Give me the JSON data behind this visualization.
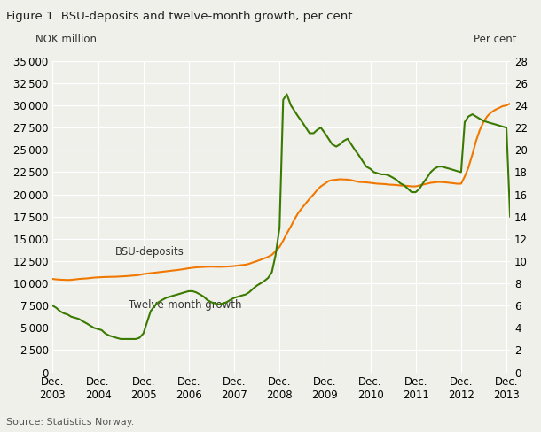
{
  "title": "Figure 1. BSU-deposits and twelve-month growth, per cent",
  "ylabel_left": "NOK million",
  "ylabel_right": "Per cent",
  "source": "Source: Statistics Norway.",
  "background_color": "#f0f0eb",
  "plot_bg_color": "#f0f0eb",
  "orange_color": "#f07800",
  "green_color": "#3a7a00",
  "ylim_left": [
    0,
    35000
  ],
  "ylim_right": [
    0,
    28
  ],
  "yticks_left": [
    0,
    2500,
    5000,
    7500,
    10000,
    12500,
    15000,
    17500,
    20000,
    22500,
    25000,
    27500,
    30000,
    32500,
    35000
  ],
  "yticks_right": [
    0,
    2,
    4,
    6,
    8,
    10,
    12,
    14,
    16,
    18,
    20,
    22,
    24,
    26,
    28
  ],
  "xtick_labels": [
    "Dec.\n2003",
    "Dec.\n2004",
    "Dec.\n2005",
    "Dec.\n2006",
    "Dec.\n2007",
    "Dec.\n2008",
    "Dec.\n2009",
    "Dec.\n2010",
    "Dec.\n2011",
    "Dec.\n2012",
    "Dec.\n2013"
  ],
  "label_bsu": "BSU-deposits",
  "label_growth": "Twelve-month growth",
  "n_months": 121,
  "bsu_x_years": [
    2003.92,
    2004.0,
    2004.08,
    2004.17,
    2004.25,
    2004.33,
    2004.42,
    2004.5,
    2004.58,
    2004.67,
    2004.75,
    2004.83,
    2005.0,
    2005.08,
    2005.17,
    2005.25,
    2005.33,
    2005.42,
    2005.5,
    2005.58,
    2005.67,
    2005.75,
    2005.83,
    2005.92,
    2006.0,
    2006.08,
    2006.17,
    2006.25,
    2006.33,
    2006.42,
    2006.5,
    2006.58,
    2006.67,
    2006.75,
    2006.83,
    2006.92,
    2007.0,
    2007.08,
    2007.17,
    2007.25,
    2007.33,
    2007.42,
    2007.5,
    2007.58,
    2007.67,
    2007.75,
    2007.83,
    2007.92,
    2008.0,
    2008.08,
    2008.17,
    2008.25,
    2008.33,
    2008.42,
    2008.5,
    2008.58,
    2008.67,
    2008.75,
    2008.83,
    2008.92,
    2009.0,
    2009.08,
    2009.17,
    2009.25,
    2009.33,
    2009.42,
    2009.5,
    2009.58,
    2009.67,
    2009.75,
    2009.83,
    2009.92,
    2010.0,
    2010.08,
    2010.17,
    2010.25,
    2010.33,
    2010.42,
    2010.5,
    2010.58,
    2010.67,
    2010.75,
    2010.83,
    2010.92,
    2011.0,
    2011.08,
    2011.17,
    2011.25,
    2011.33,
    2011.42,
    2011.5,
    2011.58,
    2011.67,
    2011.75,
    2011.83,
    2011.92,
    2012.0,
    2012.08,
    2012.17,
    2012.25,
    2012.33,
    2012.42,
    2012.5,
    2012.58,
    2012.67,
    2012.75,
    2012.83,
    2012.92,
    2013.0,
    2013.08,
    2013.17,
    2013.25,
    2013.33,
    2013.42,
    2013.5,
    2013.58,
    2013.67,
    2013.75,
    2013.83,
    2013.92,
    2014.0
  ],
  "bsu_deposits": [
    10500,
    10450,
    10420,
    10400,
    10380,
    10400,
    10450,
    10500,
    10530,
    10560,
    10600,
    10650,
    10700,
    10720,
    10730,
    10740,
    10750,
    10780,
    10800,
    10830,
    10870,
    10900,
    10950,
    11050,
    11100,
    11150,
    11200,
    11250,
    11300,
    11350,
    11400,
    11450,
    11500,
    11560,
    11620,
    11700,
    11750,
    11800,
    11830,
    11850,
    11870,
    11880,
    11870,
    11860,
    11870,
    11890,
    11910,
    11950,
    12000,
    12050,
    12100,
    12200,
    12350,
    12500,
    12650,
    12800,
    12980,
    13200,
    13600,
    14100,
    14800,
    15600,
    16400,
    17200,
    17900,
    18500,
    19000,
    19500,
    20000,
    20500,
    20900,
    21200,
    21500,
    21600,
    21650,
    21700,
    21680,
    21660,
    21600,
    21500,
    21400,
    21380,
    21350,
    21300,
    21250,
    21200,
    21180,
    21150,
    21100,
    21080,
    21050,
    21000,
    20980,
    20950,
    20900,
    20900,
    21000,
    21100,
    21200,
    21300,
    21350,
    21400,
    21380,
    21350,
    21300,
    21250,
    21200,
    21200,
    22000,
    23000,
    24500,
    26000,
    27200,
    28200,
    28800,
    29200,
    29500,
    29700,
    29900,
    30000,
    30200
  ],
  "growth_x_years": [
    2003.92,
    2004.0,
    2004.08,
    2004.17,
    2004.25,
    2004.33,
    2004.42,
    2004.5,
    2004.58,
    2004.67,
    2004.75,
    2004.83,
    2005.0,
    2005.08,
    2005.17,
    2005.25,
    2005.33,
    2005.42,
    2005.5,
    2005.58,
    2005.67,
    2005.75,
    2005.83,
    2005.92,
    2006.0,
    2006.08,
    2006.17,
    2006.25,
    2006.33,
    2006.42,
    2006.5,
    2006.58,
    2006.67,
    2006.75,
    2006.83,
    2006.92,
    2007.0,
    2007.08,
    2007.17,
    2007.25,
    2007.33,
    2007.42,
    2007.5,
    2007.58,
    2007.67,
    2007.75,
    2007.83,
    2007.92,
    2008.0,
    2008.08,
    2008.17,
    2008.25,
    2008.33,
    2008.42,
    2008.5,
    2008.58,
    2008.67,
    2008.75,
    2008.83,
    2008.92,
    2009.0,
    2009.08,
    2009.17,
    2009.25,
    2009.33,
    2009.42,
    2009.5,
    2009.58,
    2009.67,
    2009.75,
    2009.83,
    2009.92,
    2010.0,
    2010.08,
    2010.17,
    2010.25,
    2010.33,
    2010.42,
    2010.5,
    2010.58,
    2010.67,
    2010.75,
    2010.83,
    2010.92,
    2011.0,
    2011.08,
    2011.17,
    2011.25,
    2011.33,
    2011.42,
    2011.5,
    2011.58,
    2011.67,
    2011.75,
    2011.83,
    2011.92,
    2012.0,
    2012.08,
    2012.17,
    2012.25,
    2012.33,
    2012.42,
    2012.5,
    2012.58,
    2012.67,
    2012.75,
    2012.83,
    2012.92,
    2013.0,
    2013.08,
    2013.17,
    2013.25,
    2013.33,
    2013.42,
    2013.5,
    2013.58,
    2013.67,
    2013.75,
    2013.83,
    2013.92,
    2014.0
  ],
  "twelve_month_growth": [
    6.0,
    5.8,
    5.5,
    5.3,
    5.2,
    5.0,
    4.9,
    4.8,
    4.6,
    4.4,
    4.2,
    4.0,
    3.8,
    3.5,
    3.3,
    3.2,
    3.1,
    3.0,
    3.0,
    3.0,
    3.0,
    3.0,
    3.1,
    3.5,
    4.5,
    5.5,
    6.0,
    6.3,
    6.5,
    6.7,
    6.8,
    6.9,
    7.0,
    7.1,
    7.2,
    7.3,
    7.3,
    7.2,
    7.0,
    6.8,
    6.5,
    6.3,
    6.2,
    6.1,
    6.2,
    6.3,
    6.5,
    6.7,
    6.8,
    6.9,
    7.0,
    7.2,
    7.5,
    7.8,
    8.0,
    8.2,
    8.5,
    9.0,
    10.5,
    13.0,
    24.5,
    25.0,
    24.0,
    23.5,
    23.0,
    22.5,
    22.0,
    21.5,
    21.5,
    21.8,
    22.0,
    21.5,
    21.0,
    20.5,
    20.3,
    20.5,
    20.8,
    21.0,
    20.5,
    20.0,
    19.5,
    19.0,
    18.5,
    18.3,
    18.0,
    17.9,
    17.8,
    17.8,
    17.7,
    17.5,
    17.3,
    17.0,
    16.8,
    16.5,
    16.2,
    16.2,
    16.5,
    17.0,
    17.5,
    18.0,
    18.3,
    18.5,
    18.5,
    18.4,
    18.3,
    18.2,
    18.1,
    18.0,
    22.5,
    23.0,
    23.2,
    23.0,
    22.8,
    22.6,
    22.5,
    22.4,
    22.3,
    22.2,
    22.1,
    22.0,
    14.0
  ],
  "xlim": [
    2003.92,
    2014.0
  ],
  "xtick_positions": [
    2003.92,
    2004.92,
    2005.92,
    2006.92,
    2007.92,
    2008.92,
    2009.92,
    2010.92,
    2011.92,
    2012.92,
    2013.92
  ]
}
